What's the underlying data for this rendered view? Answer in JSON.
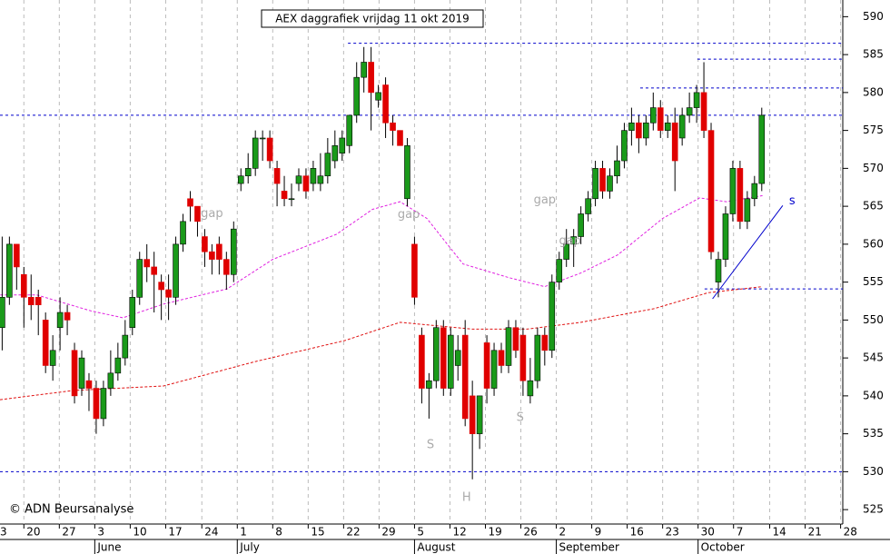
{
  "chart_data": {
    "type": "candlestick",
    "title": "AEX daggrafiek vrijdag 11 okt 2019",
    "copyright": "© ADN Beursanalyse",
    "up_color": "#1a9a1a",
    "down_color": "#e00000",
    "candles": [
      [
        549,
        561,
        546,
        553
      ],
      [
        553,
        561,
        552,
        560
      ],
      [
        560,
        560,
        554,
        557
      ],
      [
        556,
        557,
        549,
        553
      ],
      [
        553,
        556,
        550,
        552
      ],
      [
        553,
        554,
        548,
        552
      ],
      [
        550,
        551,
        543,
        544
      ],
      [
        544,
        548,
        542,
        546
      ],
      [
        549,
        553,
        546,
        551
      ],
      [
        551,
        552,
        548,
        550
      ],
      [
        546,
        547,
        539,
        540
      ],
      [
        541,
        546,
        540,
        545
      ],
      [
        542,
        543,
        538,
        541
      ],
      [
        541,
        542,
        535,
        537
      ],
      [
        537,
        542,
        536,
        541
      ],
      [
        541,
        546,
        540,
        543
      ],
      [
        543,
        547,
        542,
        545
      ],
      [
        545,
        550,
        544,
        548
      ],
      [
        549,
        554,
        548,
        553
      ],
      [
        553,
        559,
        552,
        558
      ],
      [
        558,
        560,
        555,
        557
      ],
      [
        557,
        559,
        551,
        556
      ],
      [
        555,
        556,
        550,
        554
      ],
      [
        554,
        556,
        550,
        553
      ],
      [
        553,
        561,
        552,
        560
      ],
      [
        560,
        564,
        559,
        563
      ],
      [
        566,
        567,
        563,
        565
      ],
      [
        565,
        565,
        561,
        563
      ],
      [
        561,
        562,
        557,
        559
      ],
      [
        559,
        560,
        556,
        558
      ],
      [
        560,
        561,
        556,
        558
      ],
      [
        558,
        559,
        554,
        556
      ],
      [
        556,
        563,
        555,
        562
      ],
      [
        568,
        570,
        567,
        569
      ],
      [
        569,
        572,
        568,
        570
      ],
      [
        570,
        575,
        569,
        574
      ],
      [
        574,
        575,
        571,
        574
      ],
      [
        574,
        575,
        570,
        571
      ],
      [
        570,
        571,
        565,
        568
      ],
      [
        567,
        569,
        565,
        566
      ],
      [
        566,
        568,
        565,
        566
      ],
      [
        568,
        570,
        567,
        569
      ],
      [
        569,
        570,
        566,
        567
      ],
      [
        568,
        571,
        567,
        570
      ],
      [
        568,
        572,
        567,
        569
      ],
      [
        569,
        574,
        568,
        572
      ],
      [
        571,
        575,
        570,
        573
      ],
      [
        572,
        575,
        571,
        574
      ],
      [
        573,
        577,
        572,
        577
      ],
      [
        577,
        584,
        576,
        582
      ],
      [
        582,
        586,
        580,
        584
      ],
      [
        584,
        586,
        575,
        580
      ],
      [
        579,
        581,
        578,
        580
      ],
      [
        581,
        582,
        574,
        576
      ],
      [
        576,
        577,
        573,
        575
      ],
      [
        575,
        575,
        573,
        573
      ],
      [
        566,
        574,
        565,
        573
      ],
      [
        560,
        561,
        552,
        553
      ],
      [
        548,
        549,
        539,
        541
      ],
      [
        541,
        543,
        537,
        542
      ],
      [
        542,
        550,
        541,
        549
      ],
      [
        549,
        550,
        540,
        541
      ],
      [
        541,
        549,
        540,
        548
      ],
      [
        544,
        548,
        542,
        546
      ],
      [
        548,
        550,
        536,
        537
      ],
      [
        540,
        542,
        529,
        535
      ],
      [
        535,
        540,
        533,
        540
      ],
      [
        547,
        548,
        539,
        541
      ],
      [
        541,
        547,
        540,
        546
      ],
      [
        546,
        547,
        543,
        544
      ],
      [
        544,
        550,
        543,
        549
      ],
      [
        549,
        550,
        545,
        546
      ],
      [
        548,
        549,
        540,
        542
      ],
      [
        540,
        545,
        539,
        542
      ],
      [
        542,
        549,
        541,
        548
      ],
      [
        548,
        549,
        544,
        546
      ],
      [
        546,
        556,
        545,
        555
      ],
      [
        555,
        559,
        554,
        558
      ],
      [
        558,
        562,
        557,
        560
      ],
      [
        560,
        562,
        557,
        561
      ],
      [
        561,
        565,
        560,
        564
      ],
      [
        564,
        567,
        563,
        566
      ],
      [
        566,
        571,
        565,
        570
      ],
      [
        570,
        571,
        566,
        567
      ],
      [
        567,
        570,
        566,
        569
      ],
      [
        569,
        573,
        568,
        571
      ],
      [
        571,
        576,
        570,
        575
      ],
      [
        575,
        578,
        573,
        576
      ],
      [
        576,
        577,
        572,
        574
      ],
      [
        574,
        577,
        573,
        576
      ],
      [
        576,
        580,
        575,
        578
      ],
      [
        578,
        579,
        574,
        575
      ],
      [
        575,
        577,
        574,
        576
      ],
      [
        576,
        578,
        567,
        571
      ],
      [
        574,
        578,
        573,
        577
      ],
      [
        577,
        580,
        576,
        578
      ],
      [
        578,
        581,
        576,
        580
      ],
      [
        580,
        584,
        574,
        575
      ],
      [
        575,
        576,
        558,
        559
      ],
      [
        555,
        559,
        553,
        558
      ],
      [
        558,
        565,
        557,
        564
      ],
      [
        564,
        571,
        563,
        570
      ],
      [
        570,
        571,
        562,
        563
      ],
      [
        563,
        567,
        562,
        566
      ],
      [
        566,
        569,
        565,
        568
      ],
      [
        568,
        578,
        567,
        577
      ]
    ],
    "series": [
      {
        "color": "#e020e0",
        "x": [
          -0.25,
          4.8,
          12.3,
          16.7,
          22.3,
          31.1,
          37.4,
          46.2,
          51.2,
          55.0,
          58.7,
          63.7,
          70.0,
          75.0,
          80.0,
          85.1,
          91.3,
          96.4,
          100.1,
          105.1
        ],
        "values": [
          553.3,
          553.3,
          551.2,
          550.3,
          552.1,
          554.1,
          558.0,
          561.3,
          564.6,
          565.6,
          563.4,
          557.4,
          555.6,
          554.4,
          556.2,
          558.6,
          563.4,
          566.1,
          565.6,
          566.4
        ]
      },
      {
        "color": "#e01010",
        "x": [
          -0.3,
          9.8,
          22.3,
          34.9,
          47.4,
          55.0,
          65.0,
          72.5,
          80.0,
          90.1,
          97.6,
          105.1
        ],
        "values": [
          539.5,
          540.7,
          541.3,
          544.5,
          547.3,
          549.7,
          548.8,
          548.8,
          549.7,
          551.5,
          553.6,
          554.4
        ]
      }
    ],
    "reference_lines": [
      {
        "value": 577,
        "start": -0.3
      },
      {
        "value": 586.5,
        "start": 47.8
      },
      {
        "value": 584.4,
        "start": 96.1
      },
      {
        "value": 580.6,
        "start": 88.2
      },
      {
        "value": 554.1,
        "start": 97.1
      },
      {
        "value": 530,
        "start": -0.3
      }
    ],
    "trend_line": {
      "x": [
        98.2,
        107.9
      ],
      "values": [
        552.8,
        565.1
      ]
    },
    "annotations": [
      {
        "text": "gap",
        "x": 29.0,
        "y": 564.0
      },
      {
        "text": "gap",
        "x": 56.2,
        "y": 563.9
      },
      {
        "text": "gap",
        "x": 75.0,
        "y": 565.8
      },
      {
        "text": "gap",
        "x": 78.5,
        "y": 560.4
      },
      {
        "text": "S",
        "x": 59.2,
        "y": 533.5
      },
      {
        "text": "H",
        "x": 64.2,
        "y": 526.6
      },
      {
        "text": "S",
        "x": 71.6,
        "y": 537.1
      },
      {
        "text": "s",
        "x": 109.2,
        "y": 565.7,
        "color": "#0000cc"
      }
    ],
    "xlim": [
      -0.3,
      116.2
    ],
    "ylim": [
      523.1,
      592.2
    ],
    "yticks": [
      525,
      530,
      535,
      540,
      545,
      550,
      555,
      560,
      565,
      570,
      575,
      580,
      585,
      590
    ],
    "xticks": [
      {
        "value": -1.9,
        "label": "3"
      },
      {
        "value": 3.0,
        "label": "20"
      },
      {
        "value": 7.9,
        "label": "27"
      },
      {
        "value": 12.8,
        "label": "3"
      },
      {
        "value": 17.7,
        "label": "10"
      },
      {
        "value": 22.6,
        "label": "17"
      },
      {
        "value": 27.6,
        "label": "24"
      },
      {
        "value": 32.5,
        "label": "1"
      },
      {
        "value": 37.4,
        "label": "8"
      },
      {
        "value": 42.3,
        "label": "15"
      },
      {
        "value": 47.2,
        "label": "22"
      },
      {
        "value": 52.1,
        "label": "29"
      },
      {
        "value": 57.0,
        "label": "5"
      },
      {
        "value": 61.9,
        "label": "12"
      },
      {
        "value": 66.8,
        "label": "19"
      },
      {
        "value": 71.7,
        "label": "26"
      },
      {
        "value": 76.6,
        "label": "2"
      },
      {
        "value": 81.5,
        "label": "9"
      },
      {
        "value": 86.4,
        "label": "16"
      },
      {
        "value": 91.3,
        "label": "23"
      },
      {
        "value": 96.2,
        "label": "30"
      },
      {
        "value": 101.1,
        "label": "7"
      },
      {
        "value": 106.1,
        "label": "14"
      },
      {
        "value": 111.0,
        "label": "21"
      },
      {
        "value": 115.9,
        "label": "28"
      }
    ],
    "months": [
      {
        "value": 12.8,
        "label": "June"
      },
      {
        "value": 32.5,
        "label": "July"
      },
      {
        "value": 57.0,
        "label": "August"
      },
      {
        "value": 76.6,
        "label": "September"
      },
      {
        "value": 96.2,
        "label": "October"
      }
    ],
    "grid": "x",
    "reference_color": "#0000cc"
  }
}
